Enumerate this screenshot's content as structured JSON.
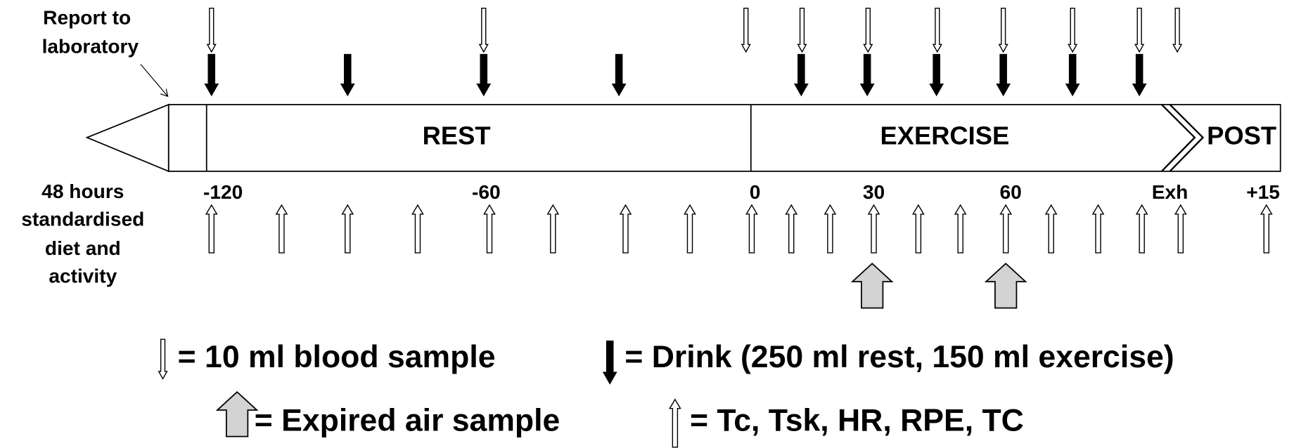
{
  "arrival": {
    "lines": [
      "Report to",
      "laboratory"
    ]
  },
  "pre_trial": {
    "lines": [
      "48 hours",
      "standardised",
      "diet and",
      "activity"
    ]
  },
  "phases": [
    "REST",
    "EXERCISE",
    "POST"
  ],
  "time_labels": [
    "-120",
    "-60",
    "0",
    "30",
    "60",
    "Exh",
    "+15"
  ],
  "legend": [
    {
      "label": "= 10 ml blood sample"
    },
    {
      "label": "= Drink (250 ml rest, 150 ml exercise)"
    },
    {
      "label": "= Expired air sample"
    },
    {
      "label": "= Tc, Tsk, HR, RPE, TC"
    }
  ]
}
